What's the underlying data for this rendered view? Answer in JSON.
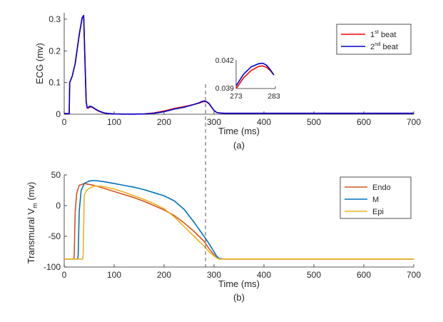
{
  "chart_data": [
    {
      "id": "a",
      "type": "line",
      "panel_label": "(a)",
      "xlabel": "Time (ms)",
      "ylabel": "ECG (mv)",
      "xlim": [
        0,
        700
      ],
      "ylim": [
        0,
        0.32
      ],
      "xticks": [
        0,
        100,
        200,
        300,
        400,
        500,
        600,
        700
      ],
      "yticks": [
        0,
        0.1,
        0.2,
        0.3
      ],
      "ytick_labels": [
        "0",
        "0.1",
        "0.2",
        "0.3"
      ],
      "legend_position": "top-right",
      "series": [
        {
          "name": "1st beat",
          "label_base": "1",
          "label_sup": "st",
          "label_rest": " beat",
          "color": "#ff0000",
          "x": [
            0,
            10,
            11,
            16,
            22,
            30,
            36,
            39,
            41,
            44,
            46,
            48,
            50,
            55,
            60,
            65,
            70,
            75,
            80,
            90,
            100,
            120,
            140,
            160,
            180,
            200,
            220,
            240,
            260,
            270,
            275,
            280,
            285,
            290,
            295,
            300,
            305,
            310,
            320,
            350,
            400,
            500,
            600,
            700
          ],
          "y": [
            0.002,
            0.002,
            0.1,
            0.12,
            0.16,
            0.25,
            0.305,
            0.31,
            0.2,
            0.04,
            0.02,
            0.019,
            0.022,
            0.023,
            0.018,
            0.013,
            0.009,
            0.006,
            0.004,
            0.002,
            0.001,
            0.0005,
            0.0005,
            0.001,
            0.004,
            0.01,
            0.018,
            0.024,
            0.031,
            0.035,
            0.038,
            0.04,
            0.039,
            0.033,
            0.022,
            0.012,
            0.006,
            0.004,
            0.003,
            0.003,
            0.003,
            0.003,
            0.003,
            0.003
          ]
        },
        {
          "name": "2nd beat",
          "label_base": "2",
          "label_sup": "nd",
          "label_rest": " beat",
          "color": "#0000cc",
          "x": [
            0,
            10,
            11,
            16,
            22,
            30,
            36,
            39,
            41,
            44,
            46,
            48,
            50,
            55,
            60,
            65,
            70,
            75,
            80,
            90,
            100,
            120,
            140,
            160,
            180,
            200,
            220,
            240,
            260,
            270,
            275,
            280,
            285,
            290,
            295,
            300,
            305,
            310,
            320,
            350,
            400,
            500,
            600,
            700
          ],
          "y": [
            0.002,
            0.002,
            0.1,
            0.12,
            0.16,
            0.25,
            0.305,
            0.312,
            0.2,
            0.04,
            0.02,
            0.02,
            0.025,
            0.024,
            0.019,
            0.014,
            0.01,
            0.007,
            0.004,
            0.002,
            0.001,
            0.0005,
            0.0005,
            0.001,
            0.003,
            0.008,
            0.016,
            0.022,
            0.031,
            0.036,
            0.04,
            0.042,
            0.04,
            0.034,
            0.023,
            0.012,
            0.006,
            0.004,
            0.003,
            0.003,
            0.003,
            0.003,
            0.003,
            0.003
          ]
        }
      ],
      "inset": {
        "xlim": [
          273,
          283
        ],
        "ylim": [
          0.039,
          0.042
        ],
        "xtick_labels": [
          "273",
          "283"
        ],
        "ytick_labels": [
          "0.039",
          "0.042"
        ],
        "series": [
          {
            "name": "1st beat",
            "color": "#ff0000",
            "x": [
              273,
              275,
              277,
              279,
              280,
              281,
              282,
              283
            ],
            "y": [
              0.039,
              0.0402,
              0.041,
              0.04145,
              0.0415,
              0.04135,
              0.041,
              0.0405
            ]
          },
          {
            "name": "2nd beat",
            "color": "#0000cc",
            "x": [
              273,
              275,
              277,
              279,
              280,
              281,
              282,
              283
            ],
            "y": [
              0.0393,
              0.0406,
              0.0414,
              0.04175,
              0.0418,
              0.0416,
              0.0411,
              0.0405
            ]
          }
        ]
      }
    },
    {
      "id": "b",
      "type": "line",
      "panel_label": "(b)",
      "xlabel": "Time (ms)",
      "ylabel": "Transmural V",
      "ylabel_sub": "m",
      "ylabel_rest": " (mv)",
      "xlim": [
        0,
        700
      ],
      "ylim": [
        -100,
        50
      ],
      "xticks": [
        0,
        100,
        200,
        300,
        400,
        500,
        600,
        700
      ],
      "yticks": [
        -100,
        -50,
        0,
        50
      ],
      "legend_position": "top-right",
      "series": [
        {
          "name": "Endo",
          "color": "#d95319",
          "x": [
            0,
            19,
            20,
            22,
            25,
            30,
            40,
            60,
            80,
            100,
            120,
            140,
            160,
            180,
            200,
            220,
            240,
            260,
            280,
            290,
            300,
            305,
            310,
            320,
            350,
            400,
            500,
            600,
            700
          ],
          "y": [
            -87,
            -87,
            -82,
            -10,
            20,
            33,
            36,
            33,
            28,
            23,
            18,
            13,
            7,
            0,
            -7,
            -16,
            -28,
            -42,
            -58,
            -70,
            -80,
            -85,
            -87,
            -87,
            -87,
            -87,
            -87,
            -87,
            -87
          ]
        },
        {
          "name": "M",
          "color": "#0072bd",
          "x": [
            0,
            27,
            28,
            30,
            34,
            40,
            50,
            60,
            80,
            100,
            120,
            140,
            160,
            180,
            200,
            220,
            240,
            260,
            280,
            290,
            300,
            305,
            310,
            320,
            350,
            400,
            500,
            600,
            700
          ],
          "y": [
            -87,
            -87,
            -80,
            -10,
            25,
            36,
            40,
            41,
            39,
            36,
            33,
            30,
            26,
            21,
            16,
            8,
            -6,
            -27,
            -50,
            -62,
            -75,
            -82,
            -86,
            -87,
            -87,
            -87,
            -87,
            -87,
            -87
          ]
        },
        {
          "name": "Epi",
          "color": "#edb120",
          "x": [
            0,
            37,
            38,
            40,
            44,
            50,
            60,
            80,
            100,
            120,
            140,
            160,
            180,
            200,
            220,
            240,
            260,
            280,
            290,
            300,
            305,
            310,
            320,
            350,
            400,
            500,
            600,
            700
          ],
          "y": [
            -87,
            -87,
            -80,
            16,
            24,
            28,
            32,
            31,
            27,
            22,
            16,
            10,
            3,
            -5,
            -18,
            -34,
            -50,
            -66,
            -75,
            -82,
            -85,
            -87,
            -87,
            -87,
            -87,
            -87,
            -87,
            -87
          ]
        }
      ]
    }
  ],
  "marker_line": {
    "x": 283
  }
}
